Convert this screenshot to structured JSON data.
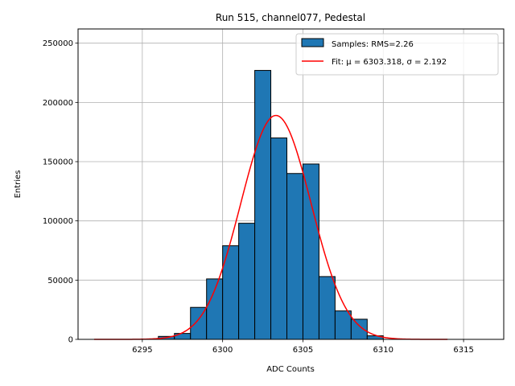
{
  "chart_data": {
    "type": "bar",
    "title": "Run 515, channel077, Pedestal",
    "xlabel": "ADC Counts",
    "ylabel": "Entries",
    "xlim": [
      6291,
      6317.5
    ],
    "ylim": [
      0,
      262000
    ],
    "xticks": [
      6295,
      6300,
      6305,
      6310,
      6315
    ],
    "yticks": [
      0,
      50000,
      100000,
      150000,
      200000,
      250000
    ],
    "grid": true,
    "legend_position": "top-right",
    "bin_width": 1,
    "bins": [
      {
        "left": 6296,
        "value": 2500
      },
      {
        "left": 6297,
        "value": 5000
      },
      {
        "left": 6298,
        "value": 27000
      },
      {
        "left": 6299,
        "value": 51000
      },
      {
        "left": 6300,
        "value": 79000
      },
      {
        "left": 6301,
        "value": 98000
      },
      {
        "left": 6302,
        "value": 227000
      },
      {
        "left": 6303,
        "value": 170000
      },
      {
        "left": 6304,
        "value": 140000
      },
      {
        "left": 6305,
        "value": 148000
      },
      {
        "left": 6306,
        "value": 53000
      },
      {
        "left": 6307,
        "value": 24000
      },
      {
        "left": 6308,
        "value": 17000
      },
      {
        "left": 6309,
        "value": 3000
      }
    ],
    "fit": {
      "mu": 6303.318,
      "sigma": 2.192,
      "amplitude": 189000,
      "x_range": [
        6292,
        6314
      ]
    },
    "series": [
      {
        "name": "Samples: RMS=2.26",
        "kind": "histogram",
        "color": "#1f77b4"
      },
      {
        "name": "Fit: μ = 6303.318, σ = 2.192",
        "kind": "line",
        "color": "#ff0000"
      }
    ]
  }
}
